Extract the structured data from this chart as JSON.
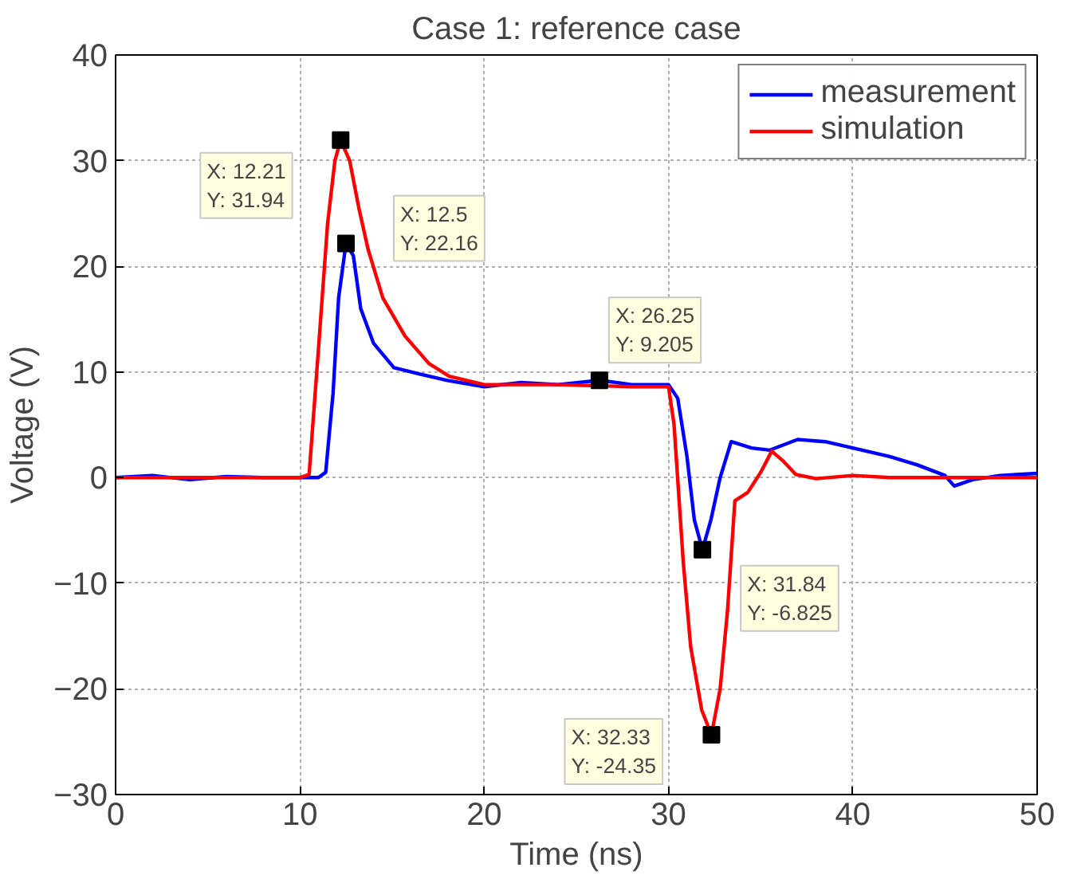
{
  "chart_data": {
    "type": "line",
    "title": "Case 1: reference case",
    "xlabel": "Time (ns)",
    "ylabel": "Voltage (V)",
    "xlim": [
      0,
      50
    ],
    "ylim": [
      -30,
      40
    ],
    "xticks": [
      0,
      10,
      20,
      30,
      40,
      50
    ],
    "yticks": [
      -30,
      -20,
      -10,
      0,
      10,
      20,
      30,
      40
    ],
    "grid": true,
    "legend": "top right",
    "line_style": "solid",
    "series": [
      {
        "name": "measurement",
        "color": "#0000ff",
        "x": [
          0,
          2,
          4,
          6,
          8,
          10,
          11,
          11.4,
          11.8,
          12.1,
          12.5,
          12.9,
          13.3,
          14,
          15.1,
          16.5,
          18,
          20,
          22,
          24,
          26.25,
          28,
          30,
          30.5,
          31,
          31.4,
          31.84,
          32.3,
          32.8,
          33.4,
          34.5,
          35.5,
          37,
          38.5,
          40,
          42,
          43.5,
          45,
          45.5,
          46.5,
          48,
          50
        ],
        "values": [
          0,
          0.2,
          -0.2,
          0.1,
          0,
          0,
          0,
          0.5,
          8,
          17,
          22.16,
          21,
          16,
          12.7,
          10.4,
          9.8,
          9.2,
          8.6,
          9,
          8.8,
          9.205,
          8.8,
          8.8,
          7.5,
          2,
          -4,
          -6.825,
          -4,
          0,
          3.4,
          2.8,
          2.6,
          3.6,
          3.4,
          2.8,
          2,
          1.2,
          0.2,
          -0.8,
          -0.2,
          0.2,
          0.4
        ]
      },
      {
        "name": "simulation",
        "color": "#ff0000",
        "x": [
          0,
          5,
          10,
          10.5,
          11,
          11.5,
          11.9,
          12.21,
          12.7,
          13.2,
          13.7,
          14.5,
          15.7,
          17,
          18.1,
          20,
          24,
          28,
          30,
          30.3,
          30.8,
          31.2,
          31.8,
          32.33,
          32.8,
          33.2,
          33.6,
          34.3,
          35,
          35.6,
          36.2,
          36.9,
          38,
          40,
          42,
          50
        ],
        "values": [
          0,
          0,
          0,
          0.3,
          12,
          24,
          30,
          31.94,
          30,
          25.5,
          21.6,
          17,
          13.4,
          10.8,
          9.6,
          8.8,
          8.8,
          8.6,
          8.6,
          5,
          -8,
          -16,
          -22,
          -24.35,
          -20,
          -12.6,
          -2.2,
          -1.4,
          0.5,
          2.5,
          1.6,
          0.3,
          -0.1,
          0.2,
          0,
          0
        ]
      }
    ],
    "annotations": [
      {
        "text": "X: 12.21\nY: 31.94",
        "x": 12.21,
        "y": 31.94
      },
      {
        "text": "X: 12.5\nY: 22.16",
        "x": 12.5,
        "y": 22.16
      },
      {
        "text": "X: 26.25\nY: 9.205",
        "x": 26.25,
        "y": 9.205
      },
      {
        "text": "X: 31.84\nY: -6.825",
        "x": 31.84,
        "y": -6.825
      },
      {
        "text": "X: 32.33\nY: -24.35",
        "x": 32.33,
        "y": -24.35
      }
    ]
  }
}
